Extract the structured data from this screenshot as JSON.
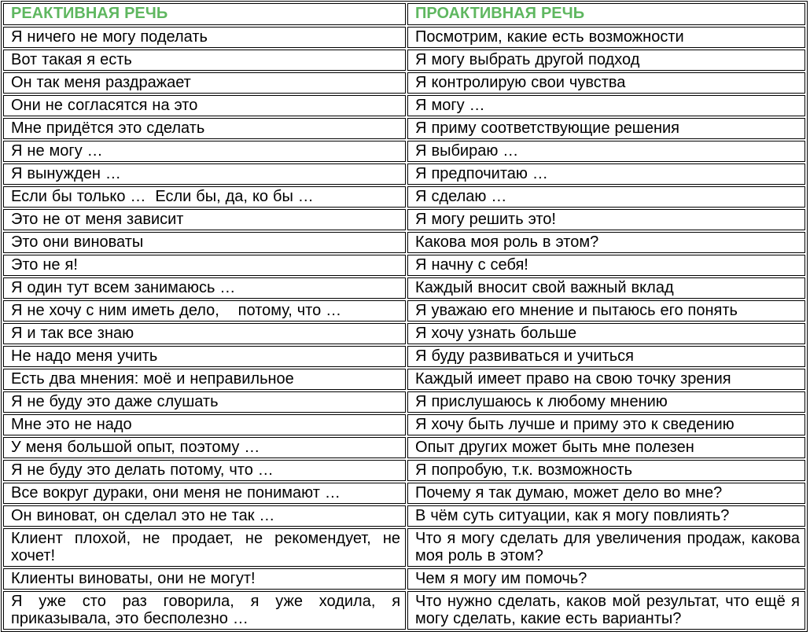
{
  "page": {
    "background": "#ffffff",
    "language": "ru"
  },
  "colors": {
    "header_text": "#5fb760",
    "body_text": "#000000",
    "border": "#000000",
    "background": "#ffffff"
  },
  "table": {
    "headers": [
      {
        "id": "reactive",
        "label": "РЕАКТИВНАЯ РЕЧЬ"
      },
      {
        "id": "proactive",
        "label": "ПРОАКТИВНАЯ РЕЧЬ"
      }
    ],
    "rows": [
      {
        "reactive": "Я ничего не могу поделать",
        "proactive": "Посмотрим, какие есть возможности"
      },
      {
        "reactive": "Вот такая я есть",
        "proactive": "Я могу выбрать другой подход"
      },
      {
        "reactive": "Он так меня раздражает",
        "proactive": "Я контролирую свои чувства"
      },
      {
        "reactive": "Они не согласятся на это",
        "proactive": "Я могу …"
      },
      {
        "reactive": "Мне придётся это сделать",
        "proactive": "Я приму соответствующие решения"
      },
      {
        "reactive": "Я не могу …",
        "proactive": "Я выбираю …"
      },
      {
        "reactive": "Я вынужден …",
        "proactive": "Я предпочитаю …"
      },
      {
        "reactive": "Если бы только …  Если бы, да, ко бы …",
        "proactive": "Я сделаю …"
      },
      {
        "reactive": "Это не от меня зависит",
        "proactive": "Я могу решить это!"
      },
      {
        "reactive": "Это они виноваты",
        "proactive": "Какова моя роль в этом?"
      },
      {
        "reactive": "Это не я!",
        "proactive": "Я начну с себя!"
      },
      {
        "reactive": "Я один тут всем занимаюсь …",
        "proactive": "Каждый вносит свой важный вклад"
      },
      {
        "reactive": "Я не хочу с ним иметь дело,    потому, что …",
        "proactive": "Я уважаю его мнение и пытаюсь его понять"
      },
      {
        "reactive": "Я и так все знаю",
        "proactive": "Я хочу узнать больше"
      },
      {
        "reactive": "Не надо меня учить",
        "proactive": "Я буду развиваться и учиться"
      },
      {
        "reactive": "Есть два мнения: моё и неправильное",
        "proactive": "Каждый имеет право на свою точку зрения"
      },
      {
        "reactive": "Я не буду это даже слушать",
        "proactive": "Я прислушаюсь к любому мнению"
      },
      {
        "reactive": "Мне это не надо",
        "proactive": "Я хочу быть лучше и приму это к сведению"
      },
      {
        "reactive": "У меня большой опыт, поэтому …",
        "proactive": "Опыт других может быть мне полезен"
      },
      {
        "reactive": "Я не буду это делать потому, что …",
        "proactive": "Я попробую, т.к. возможность"
      },
      {
        "reactive": "Все вокруг дураки, они меня не понимают …",
        "proactive": "Почему я так думаю, может дело во мне?"
      },
      {
        "reactive": "Он виноват, он сделал это не так …",
        "proactive": "В чём суть ситуации, как я могу повлиять?"
      },
      {
        "reactive": "Клиент плохой, не продает, не рекомендует, не хочет!",
        "proactive": "Что я могу сделать для увеличения продаж, какова моя роль в этом?"
      },
      {
        "reactive": "Клиенты виноваты, они не могут!",
        "proactive": "Чем я могу им помочь?"
      },
      {
        "reactive": "Я уже сто раз говорила, я уже ходила, я приказывала, это бесполезно …",
        "proactive": "Что нужно сделать, каков мой результат, что ещё я могу сделать, какие есть варианты?"
      }
    ]
  }
}
